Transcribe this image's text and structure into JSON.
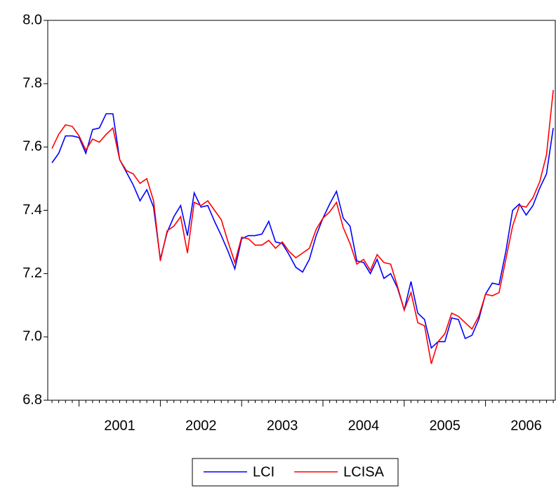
{
  "chart_data": {
    "type": "line",
    "categories": [
      null,
      null,
      null,
      null,
      null,
      null,
      null,
      null,
      null,
      null,
      "2001",
      null,
      null,
      null,
      null,
      null,
      null,
      null,
      null,
      null,
      null,
      null,
      "2002",
      null,
      null,
      null,
      null,
      null,
      null,
      null,
      null,
      null,
      null,
      null,
      "2003",
      null,
      null,
      null,
      null,
      null,
      null,
      null,
      null,
      null,
      null,
      null,
      "2004",
      null,
      null,
      null,
      null,
      null,
      null,
      null,
      null,
      null,
      null,
      null,
      "2005",
      null,
      null,
      null,
      null,
      null,
      null,
      null,
      null,
      null,
      null,
      null,
      "2006",
      null,
      null,
      null,
      null
    ],
    "series": [
      {
        "name": "LCI",
        "color": "#0000ff",
        "values": [
          7.55,
          7.58,
          7.635,
          7.635,
          7.63,
          7.58,
          7.655,
          7.66,
          7.705,
          7.705,
          7.56,
          7.52,
          7.48,
          7.43,
          7.465,
          7.41,
          7.245,
          7.33,
          7.38,
          7.415,
          7.32,
          7.455,
          7.41,
          7.415,
          7.365,
          7.32,
          7.27,
          7.215,
          7.31,
          7.32,
          7.32,
          7.325,
          7.365,
          7.3,
          7.295,
          7.26,
          7.22,
          7.205,
          7.245,
          7.32,
          7.375,
          7.42,
          7.46,
          7.375,
          7.35,
          7.24,
          7.235,
          7.2,
          7.245,
          7.185,
          7.2,
          7.155,
          7.085,
          7.175,
          7.075,
          7.055,
          6.965,
          6.985,
          6.985,
          7.06,
          7.055,
          6.995,
          7.005,
          7.055,
          7.135,
          7.17,
          7.165,
          7.27,
          7.4,
          7.42,
          7.385,
          7.415,
          7.47,
          7.515,
          7.66
        ]
      },
      {
        "name": "LCISA",
        "color": "#ff0000",
        "values": [
          7.595,
          7.64,
          7.67,
          7.665,
          7.635,
          7.59,
          7.625,
          7.615,
          7.64,
          7.66,
          7.56,
          7.525,
          7.515,
          7.485,
          7.5,
          7.43,
          7.24,
          7.335,
          7.35,
          7.38,
          7.265,
          7.425,
          7.415,
          7.43,
          7.4,
          7.37,
          7.3,
          7.235,
          7.315,
          7.31,
          7.29,
          7.29,
          7.305,
          7.28,
          7.3,
          7.27,
          7.25,
          7.265,
          7.28,
          7.34,
          7.375,
          7.395,
          7.425,
          7.345,
          7.295,
          7.23,
          7.245,
          7.21,
          7.26,
          7.235,
          7.23,
          7.16,
          7.085,
          7.14,
          7.045,
          7.035,
          6.915,
          6.985,
          7.01,
          7.075,
          7.065,
          7.045,
          7.025,
          7.065,
          7.135,
          7.13,
          7.14,
          7.245,
          7.35,
          7.415,
          7.41,
          7.44,
          7.49,
          7.575,
          7.78
        ]
      }
    ],
    "ylim": [
      6.8,
      8.0
    ],
    "yticks": [
      {
        "value": 6.8,
        "label": "6.8"
      },
      {
        "value": 7.0,
        "label": "7.0"
      },
      {
        "value": 7.2,
        "label": "7.2"
      },
      {
        "value": 7.4,
        "label": "7.4"
      },
      {
        "value": 7.6,
        "label": "7.6"
      },
      {
        "value": 7.8,
        "label": "7.8"
      },
      {
        "value": 8.0,
        "label": "8.0"
      }
    ],
    "legend": "bottom"
  }
}
